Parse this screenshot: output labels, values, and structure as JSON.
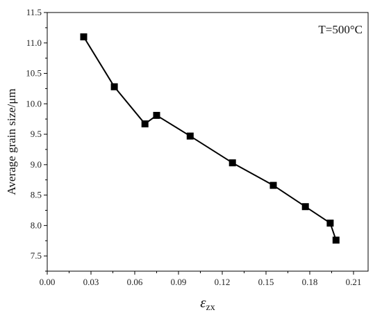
{
  "chart_data": {
    "type": "line",
    "title": "",
    "xlabel_symbol": "ε",
    "xlabel_subscript": "zx",
    "ylabel": "Average grain size/μm",
    "annotation": "T=500°C",
    "xlim": [
      0.0,
      0.22
    ],
    "ylim": [
      7.25,
      11.5
    ],
    "x_ticks": [
      0.0,
      0.03,
      0.06,
      0.09,
      0.12,
      0.15,
      0.18,
      0.21
    ],
    "x_tick_labels": [
      "0.00",
      "0.03",
      "0.06",
      "0.09",
      "0.12",
      "0.15",
      "0.18",
      "0.21"
    ],
    "y_ticks": [
      7.5,
      8.0,
      8.5,
      9.0,
      9.5,
      10.0,
      10.5,
      11.0,
      11.5
    ],
    "y_tick_labels": [
      "7.5",
      "8.0",
      "8.5",
      "9.0",
      "9.5",
      "10.0",
      "10.5",
      "11.0",
      "11.5"
    ],
    "grid": false,
    "legend": "none",
    "marker": "square",
    "line_color": "#000000",
    "marker_color": "#000000",
    "series": [
      {
        "x": [
          0.025,
          0.046,
          0.067,
          0.075,
          0.098,
          0.127,
          0.155,
          0.177,
          0.194,
          0.198
        ],
        "y": [
          11.1,
          10.28,
          9.67,
          9.81,
          9.47,
          9.03,
          8.66,
          8.31,
          8.04,
          7.76
        ]
      }
    ]
  }
}
